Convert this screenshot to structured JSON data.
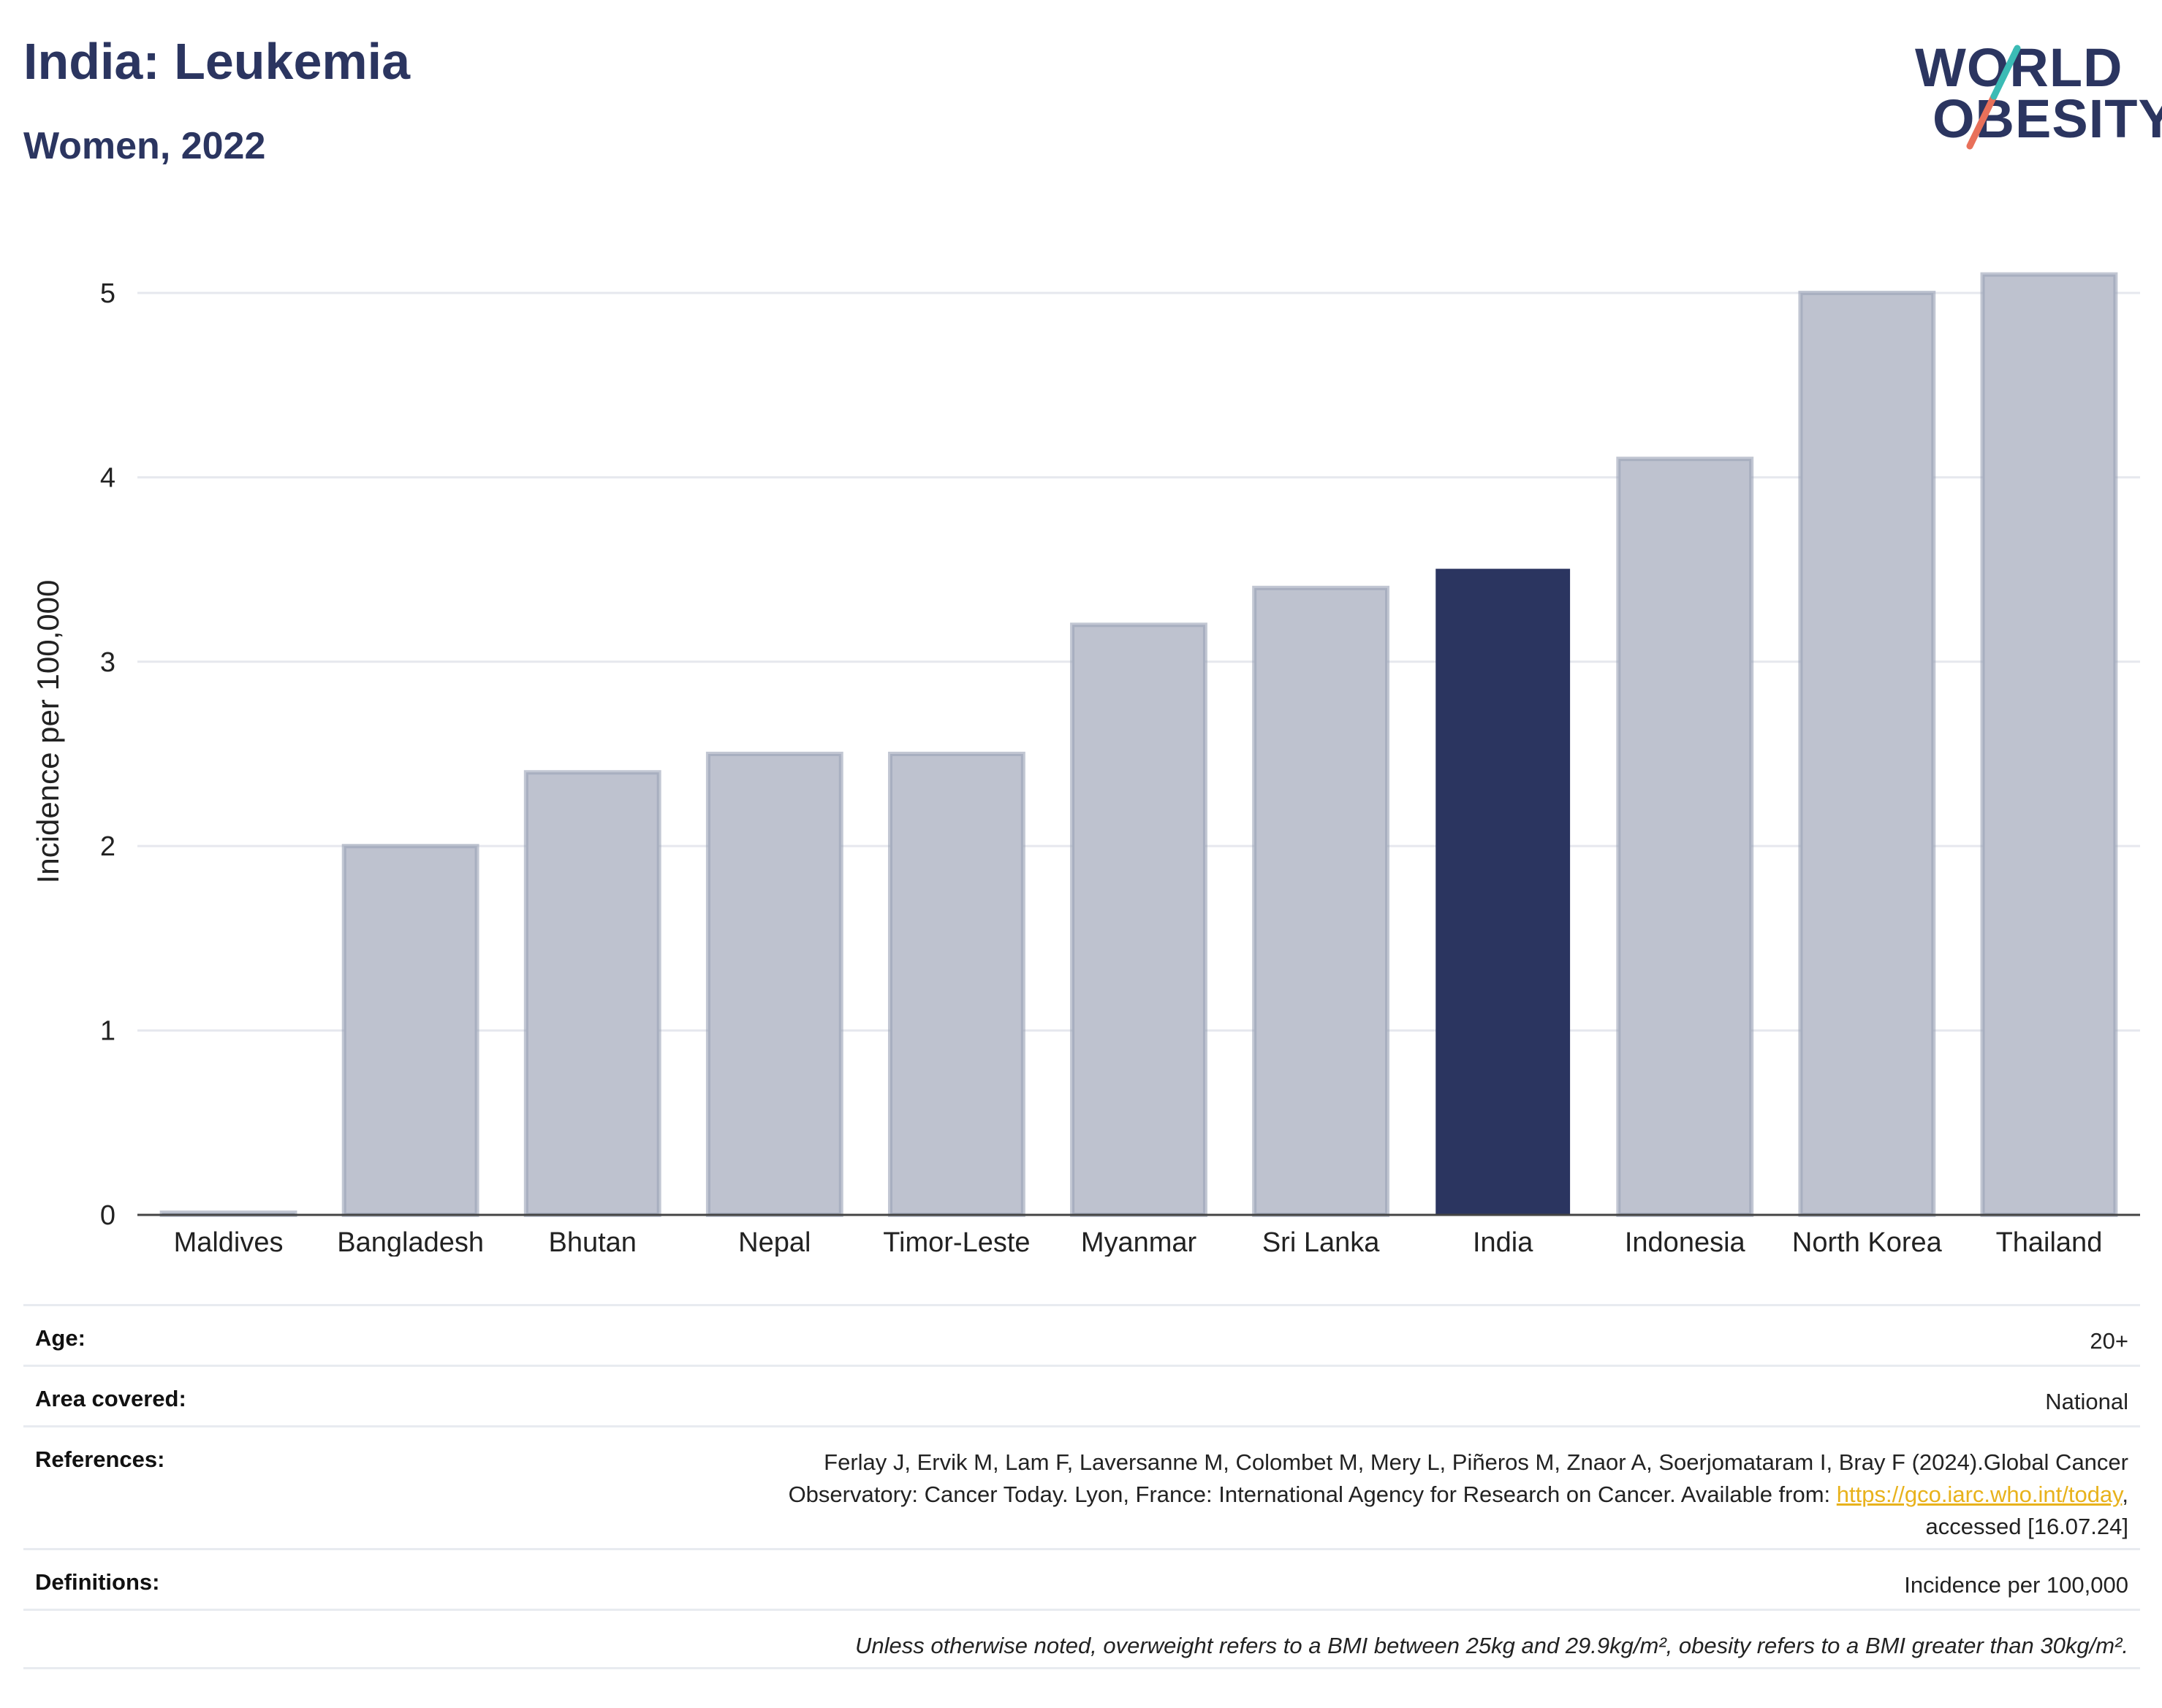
{
  "header": {
    "title": "India: Leukemia",
    "subtitle": "Women, 2022"
  },
  "logo": {
    "line1": "WORLD",
    "line2": "OBESITY"
  },
  "colors": {
    "highlight": "#2b3560",
    "bar": "#bec2cf",
    "bar_edge": "#9aa1b6",
    "logo_teal": "#3bbbb5",
    "logo_coral": "#e8705a",
    "link": "#e8b21c"
  },
  "chart_data": {
    "type": "bar",
    "categories": [
      "Maldives",
      "Bangladesh",
      "Bhutan",
      "Nepal",
      "Timor-Leste",
      "Myanmar",
      "Sri Lanka",
      "India",
      "Indonesia",
      "North Korea",
      "Thailand"
    ],
    "values": [
      0.0,
      2.0,
      2.4,
      2.5,
      2.5,
      3.2,
      3.4,
      3.5,
      4.1,
      5.0,
      5.1
    ],
    "highlight": "India",
    "ylabel": "Incidence per 100,000",
    "xlabel": "",
    "ylim": [
      0,
      5.4
    ],
    "yticks": [
      0,
      1,
      2,
      3,
      4,
      5
    ],
    "grid": true
  },
  "meta": {
    "age_label": "Age:",
    "age_value": "20+",
    "area_label": "Area covered:",
    "area_value": "National",
    "ref_label": "References:",
    "ref_line1": "Ferlay J, Ervik M, Lam F, Laversanne M, Colombet M, Mery L, Piñeros M, Znaor A, Soerjomataram I, Bray F (2024).Global Cancer",
    "ref_line2_pre": "Observatory: Cancer Today. Lyon, France: International Agency for Research on Cancer. Available from: ",
    "ref_link": "https://gco.iarc.who.int/today",
    "ref_line2_post": ",",
    "ref_line3": "accessed [16.07.24]",
    "def_label": "Definitions:",
    "def_value": "Incidence per 100,000",
    "note": "Unless otherwise noted, overweight refers to a BMI between 25kg and 29.9kg/m², obesity refers to a BMI greater than 30kg/m²."
  }
}
